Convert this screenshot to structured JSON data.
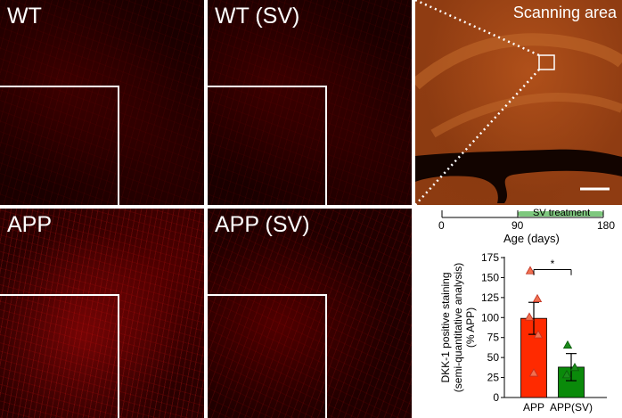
{
  "panels": {
    "wt": "WT",
    "wt_sv": "WT (SV)",
    "app": "APP",
    "app_sv": "APP (SV)",
    "scanning": "Scanning area"
  },
  "timeline": {
    "tick_0": "0",
    "tick_90": "90",
    "tick_180": "180",
    "treatment_label": "SV treatment",
    "axis_label": "Age (days)",
    "treatment_color": "#7ec87e"
  },
  "colors": {
    "app_bar": "#ff2a00",
    "app_sv_bar": "#0a8a0a",
    "app_points": "#f07050",
    "app_sv_points": "#1a8a1a"
  },
  "chart_data": {
    "type": "bar",
    "categories": [
      "APP",
      "APP(SV)"
    ],
    "values": [
      99,
      38
    ],
    "errors": [
      20,
      17
    ],
    "points": [
      [
        158,
        123,
        100,
        78,
        30
      ],
      [
        65,
        37,
        28
      ]
    ],
    "ylabel_lines": [
      "DKK-1 positive staining",
      "(semi-quantitative analysis)",
      "(% APP)"
    ],
    "yticks": [
      "0",
      "25",
      "50",
      "75",
      "100",
      "125",
      "150",
      "175"
    ],
    "ylim": [
      0,
      175
    ],
    "significance": "*"
  }
}
